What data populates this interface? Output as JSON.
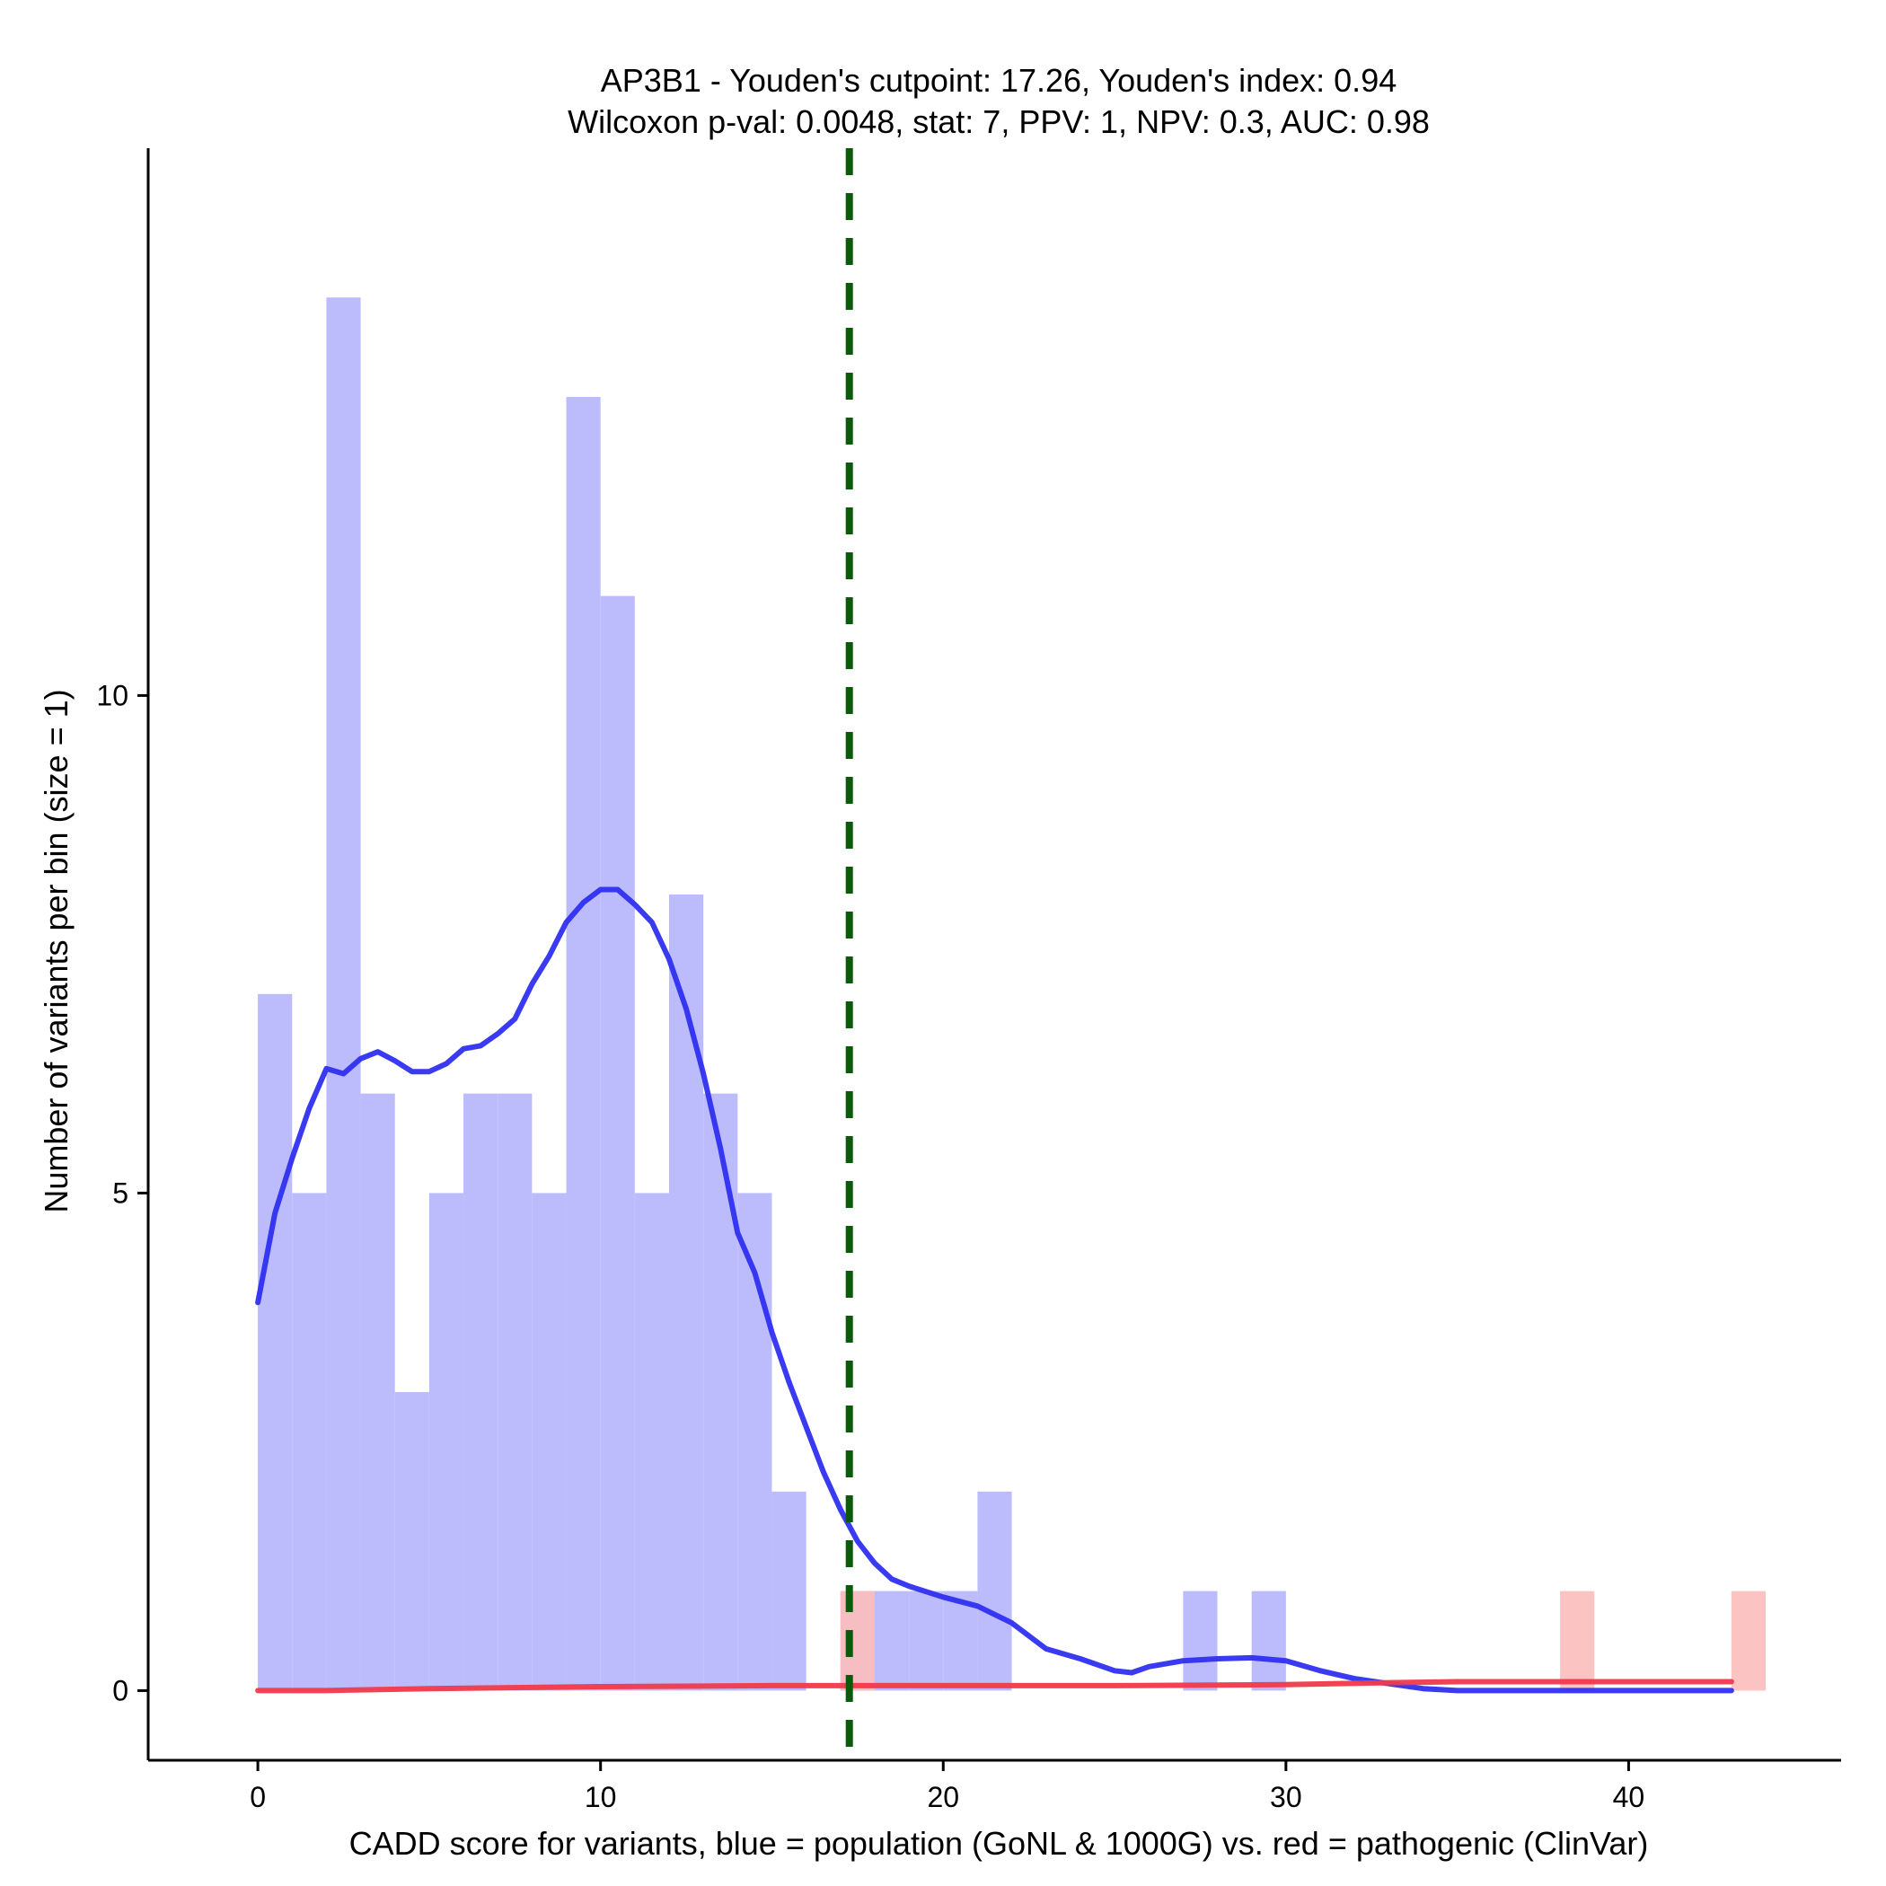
{
  "chart_data": {
    "type": "bar",
    "title": "AP3B1 - Youden's cutpoint: 17.26, Youden's index: 0.94",
    "subtitle": "Wilcoxon p-val: 0.0048, stat: 7, PPV: 1, NPV: 0.3, AUC: 0.98",
    "xlabel": "CADD score for variants, blue = population (GoNL & 1000G) vs. red = pathogenic (ClinVar)",
    "ylabel": "Number of variants per bin (size = 1)",
    "xlim": [
      -3.2,
      46.2
    ],
    "ylim": [
      -0.7,
      15.5
    ],
    "x_ticks": [
      0,
      10,
      20,
      30,
      40
    ],
    "y_ticks": [
      0,
      5,
      10
    ],
    "bin_width": 1,
    "cutpoint": 17.26,
    "series": [
      {
        "color": "#bcbcfc",
        "bins": [
          {
            "start": 0,
            "count": 7
          },
          {
            "start": 1,
            "count": 5
          },
          {
            "start": 2,
            "count": 14
          },
          {
            "start": 3,
            "count": 6
          },
          {
            "start": 4,
            "count": 3
          },
          {
            "start": 5,
            "count": 5
          },
          {
            "start": 6,
            "count": 6
          },
          {
            "start": 7,
            "count": 6
          },
          {
            "start": 8,
            "count": 5
          },
          {
            "start": 9,
            "count": 13
          },
          {
            "start": 10,
            "count": 11
          },
          {
            "start": 11,
            "count": 5
          },
          {
            "start": 12,
            "count": 8
          },
          {
            "start": 13,
            "count": 6
          },
          {
            "start": 14,
            "count": 5
          },
          {
            "start": 15,
            "count": 2
          },
          {
            "start": 17,
            "count": 1
          },
          {
            "start": 18,
            "count": 1
          },
          {
            "start": 19,
            "count": 1
          },
          {
            "start": 20,
            "count": 1
          },
          {
            "start": 21,
            "count": 2
          },
          {
            "start": 27,
            "count": 1
          },
          {
            "start": 29,
            "count": 1
          }
        ],
        "density": [
          [
            0,
            3.9
          ],
          [
            0.5,
            4.8
          ],
          [
            1,
            5.35
          ],
          [
            1.5,
            5.85
          ],
          [
            2,
            6.25
          ],
          [
            2.5,
            6.2
          ],
          [
            3,
            6.35
          ],
          [
            3.5,
            6.42
          ],
          [
            4,
            6.33
          ],
          [
            4.5,
            6.22
          ],
          [
            5,
            6.22
          ],
          [
            5.5,
            6.3
          ],
          [
            6,
            6.45
          ],
          [
            6.5,
            6.48
          ],
          [
            7,
            6.6
          ],
          [
            7.5,
            6.75
          ],
          [
            8,
            7.1
          ],
          [
            8.5,
            7.38
          ],
          [
            9,
            7.72
          ],
          [
            9.5,
            7.92
          ],
          [
            10,
            8.05
          ],
          [
            10.5,
            8.05
          ],
          [
            11,
            7.9
          ],
          [
            11.5,
            7.72
          ],
          [
            12,
            7.35
          ],
          [
            12.5,
            6.85
          ],
          [
            13,
            6.2
          ],
          [
            13.5,
            5.45
          ],
          [
            14,
            4.6
          ],
          [
            14.5,
            4.2
          ],
          [
            15,
            3.6
          ],
          [
            15.5,
            3.1
          ],
          [
            16,
            2.65
          ],
          [
            16.5,
            2.2
          ],
          [
            17,
            1.82
          ],
          [
            17.5,
            1.5
          ],
          [
            18,
            1.28
          ],
          [
            18.5,
            1.12
          ],
          [
            19,
            1.05
          ],
          [
            20,
            0.94
          ],
          [
            21,
            0.85
          ],
          [
            22,
            0.68
          ],
          [
            23,
            0.42
          ],
          [
            24,
            0.32
          ],
          [
            25,
            0.2
          ],
          [
            25.5,
            0.18
          ],
          [
            26,
            0.24
          ],
          [
            27,
            0.3
          ],
          [
            28,
            0.32
          ],
          [
            29,
            0.33
          ],
          [
            30,
            0.3
          ],
          [
            31,
            0.2
          ],
          [
            32,
            0.12
          ],
          [
            33,
            0.07
          ],
          [
            34,
            0.02
          ],
          [
            35,
            0.0
          ],
          [
            38,
            0.0
          ],
          [
            40,
            0.0
          ],
          [
            43,
            0.0
          ]
        ]
      },
      {
        "color": "#fcbcbc",
        "bins": [
          {
            "start": 17,
            "count": 1
          },
          {
            "start": 38,
            "count": 1
          },
          {
            "start": 43,
            "count": 1
          }
        ],
        "density": [
          [
            0,
            0.0
          ],
          [
            2,
            0.0
          ],
          [
            5,
            0.02
          ],
          [
            10,
            0.04
          ],
          [
            15,
            0.05
          ],
          [
            20,
            0.05
          ],
          [
            25,
            0.05
          ],
          [
            30,
            0.06
          ],
          [
            33,
            0.08
          ],
          [
            35,
            0.09
          ],
          [
            38,
            0.09
          ],
          [
            40,
            0.09
          ],
          [
            43,
            0.09
          ]
        ]
      }
    ]
  }
}
